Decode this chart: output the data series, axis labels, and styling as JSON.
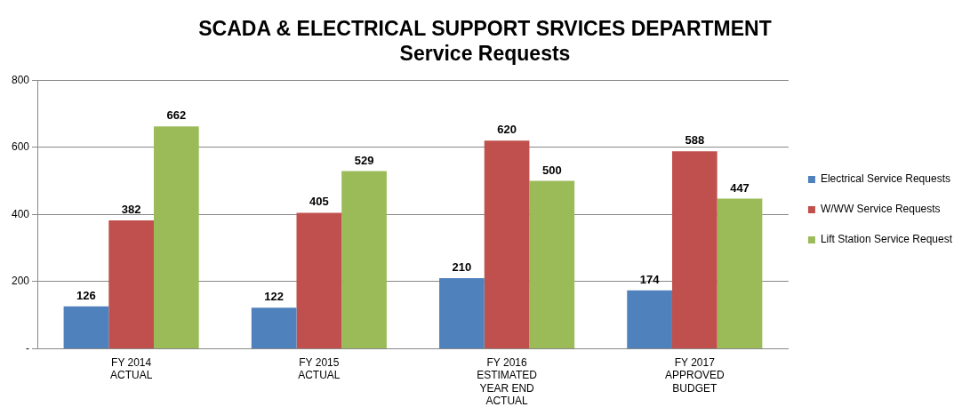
{
  "chart_data": {
    "type": "bar",
    "title": "SCADA & ELECTRICAL SUPPORT SRVICES DEPARTMENT",
    "subtitle": "Service Requests",
    "categories": [
      "FY 2014\nACTUAL",
      "FY 2015\nACTUAL",
      "FY 2016\nESTIMATED\nYEAR END\nACTUAL",
      "FY 2017\nAPPROVED\nBUDGET"
    ],
    "series": [
      {
        "name": "Electrical Service Requests",
        "color": "#4f81bd",
        "values": [
          126,
          122,
          210,
          174
        ]
      },
      {
        "name": "W/WW Service Requests",
        "color": "#c0504d",
        "values": [
          382,
          405,
          620,
          588
        ]
      },
      {
        "name": "Lift Station Service Request",
        "color": "#9bbb59",
        "values": [
          662,
          529,
          500,
          447
        ]
      }
    ],
    "ylim": [
      0,
      800
    ],
    "yticks": [
      {
        "value": 0,
        "label": "-"
      },
      200,
      400,
      600,
      800
    ],
    "grid": "y",
    "legend": "right",
    "data_labels": true
  }
}
